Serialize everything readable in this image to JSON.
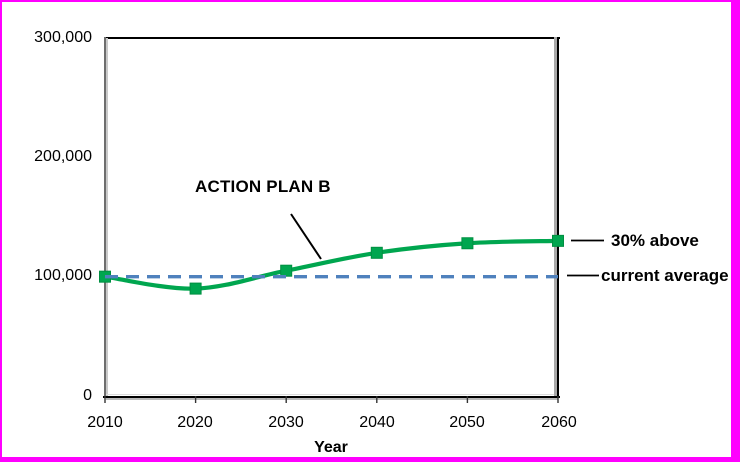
{
  "frame": {
    "border_color": "#ff00ff",
    "background": "#ffffff"
  },
  "chart_data": {
    "type": "line",
    "title": "",
    "xlabel": "Year",
    "ylabel": "",
    "x": [
      2010,
      2020,
      2030,
      2040,
      2050,
      2060
    ],
    "series": [
      {
        "name": "ACTION PLAN B",
        "values": [
          100000,
          90000,
          105000,
          120000,
          128000,
          130000
        ],
        "color": "#00a64f",
        "marker": "square",
        "style": "solid-smooth"
      },
      {
        "name": "current average",
        "values": [
          100000,
          100000,
          100000,
          100000,
          100000,
          100000
        ],
        "color": "#4f81bd",
        "marker": "none",
        "style": "dashed"
      }
    ],
    "ylim": [
      0,
      300000
    ],
    "xlim": [
      2010,
      2060
    ],
    "grid": false,
    "legend": "none",
    "yticks": {
      "values": [
        0,
        100000,
        200000,
        300000
      ],
      "labels": [
        "0",
        "100,000",
        "200,000",
        "300,000"
      ]
    },
    "xticks": {
      "values": [
        2010,
        2020,
        2030,
        2040,
        2050,
        2060
      ],
      "labels": [
        "2010",
        "2020",
        "2030",
        "2040",
        "2050",
        "2060"
      ]
    },
    "annotations": [
      {
        "text": "ACTION PLAN B",
        "target": "green series, callout line to curve near 2030-2040"
      },
      {
        "text": "30% above",
        "target": "end of green series at 2060 (130,000)"
      },
      {
        "text": "current average",
        "target": "dashed reference line at 100,000"
      }
    ]
  },
  "colors": {
    "series_green": "#00a64f",
    "series_green_edge": "#008f41",
    "dashed_blue": "#4f81bd",
    "frame_magenta": "#ff00ff",
    "text": "#000000"
  }
}
